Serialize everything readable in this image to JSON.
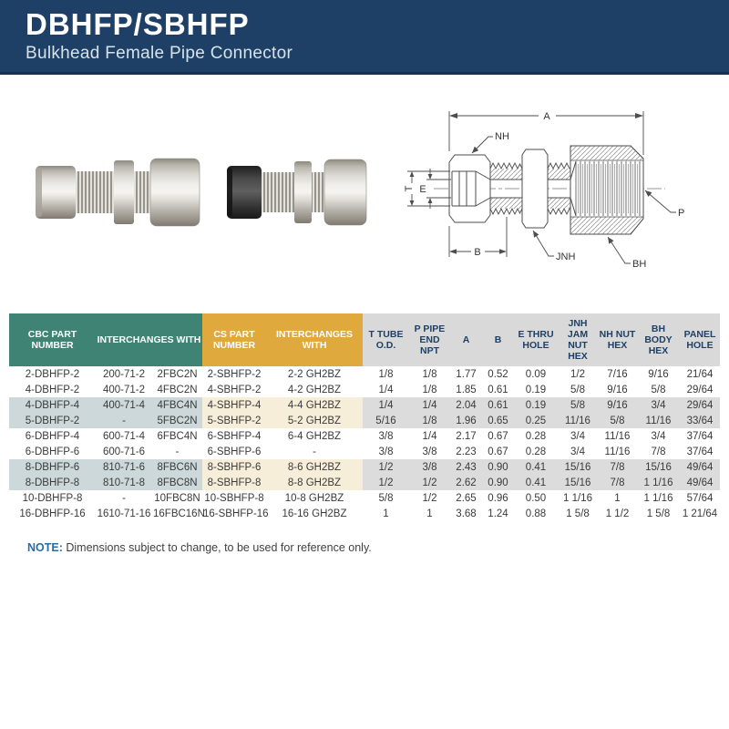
{
  "header": {
    "title": "DBHFP/SBHFP",
    "subtitle": "Bulkhead Female Pipe Connector"
  },
  "drawing": {
    "dim_a": "A",
    "dim_b": "B",
    "dim_e": "E",
    "dim_t": "T",
    "label_nh": "NH",
    "label_jnh": "JNH",
    "label_bh": "BH",
    "label_p": "P"
  },
  "table": {
    "cbc_header": "CBC PART NUMBER",
    "interchanges_header": "INTERCHANGES WITH",
    "cs_header": "CS PART NUMBER",
    "cs_interchanges_header": "INTERCHANGES WITH",
    "dim_headers": [
      "T TUBE O.D.",
      "P PIPE END NPT",
      "A",
      "B",
      "E THRU HOLE",
      "JNH JAM NUT HEX",
      "NH NUT HEX",
      "BH BODY HEX",
      "PANEL HOLE"
    ],
    "rows": [
      [
        "2-DBHFP-2",
        "200-71-2",
        "2FBC2N",
        "2-SBHFP-2",
        "2-2 GH2BZ",
        "1/8",
        "1/8",
        "1.77",
        "0.52",
        "0.09",
        "1/2",
        "7/16",
        "9/16",
        "21/64"
      ],
      [
        "4-DBHFP-2",
        "400-71-2",
        "4FBC2N",
        "4-SBHFP-2",
        "4-2 GH2BZ",
        "1/4",
        "1/8",
        "1.85",
        "0.61",
        "0.19",
        "5/8",
        "9/16",
        "5/8",
        "29/64"
      ],
      [
        "4-DBHFP-4",
        "400-71-4",
        "4FBC4N",
        "4-SBHFP-4",
        "4-4 GH2BZ",
        "1/4",
        "1/4",
        "2.04",
        "0.61",
        "0.19",
        "5/8",
        "9/16",
        "3/4",
        "29/64"
      ],
      [
        "5-DBHFP-2",
        "-",
        "5FBC2N",
        "5-SBHFP-2",
        "5-2 GH2BZ",
        "5/16",
        "1/8",
        "1.96",
        "0.65",
        "0.25",
        "11/16",
        "5/8",
        "11/16",
        "33/64"
      ],
      [
        "6-DBHFP-4",
        "600-71-4",
        "6FBC4N",
        "6-SBHFP-4",
        "6-4 GH2BZ",
        "3/8",
        "1/4",
        "2.17",
        "0.67",
        "0.28",
        "3/4",
        "11/16",
        "3/4",
        "37/64"
      ],
      [
        "6-DBHFP-6",
        "600-71-6",
        "-",
        "6-SBHFP-6",
        "-",
        "3/8",
        "3/8",
        "2.23",
        "0.67",
        "0.28",
        "3/4",
        "11/16",
        "7/8",
        "37/64"
      ],
      [
        "8-DBHFP-6",
        "810-71-6",
        "8FBC6N",
        "8-SBHFP-6",
        "8-6 GH2BZ",
        "1/2",
        "3/8",
        "2.43",
        "0.90",
        "0.41",
        "15/16",
        "7/8",
        "15/16",
        "49/64"
      ],
      [
        "8-DBHFP-8",
        "810-71-8",
        "8FBC8N",
        "8-SBHFP-8",
        "8-8 GH2BZ",
        "1/2",
        "1/2",
        "2.62",
        "0.90",
        "0.41",
        "15/16",
        "7/8",
        "1 1/16",
        "49/64"
      ],
      [
        "10-DBHFP-8",
        "-",
        "10FBC8N",
        "10-SBHFP-8",
        "10-8 GH2BZ",
        "5/8",
        "1/2",
        "2.65",
        "0.96",
        "0.50",
        "1 1/16",
        "1",
        "1 1/16",
        "57/64"
      ],
      [
        "16-DBHFP-16",
        "1610-71-16",
        "16FBC16N",
        "16-SBHFP-16",
        "16-16 GH2BZ",
        "1",
        "1",
        "3.68",
        "1.24",
        "0.88",
        "1 5/8",
        "1 1/2",
        "1 5/8",
        "1 21/64"
      ]
    ],
    "shaded_row_indices": [
      2,
      3,
      6,
      7
    ]
  },
  "note": {
    "label": "NOTE:",
    "text": " Dimensions subject to change, to be used for reference only."
  },
  "colors": {
    "navy": "#1f4066",
    "teal": "#3e8374",
    "gold": "#dfa93e",
    "header_gray": "#d9d9d9",
    "shade_blue": "#cdd8da",
    "shade_cream": "#f7eed9",
    "shade_gray": "#dcdcdc",
    "note_blue": "#2a6da4"
  }
}
